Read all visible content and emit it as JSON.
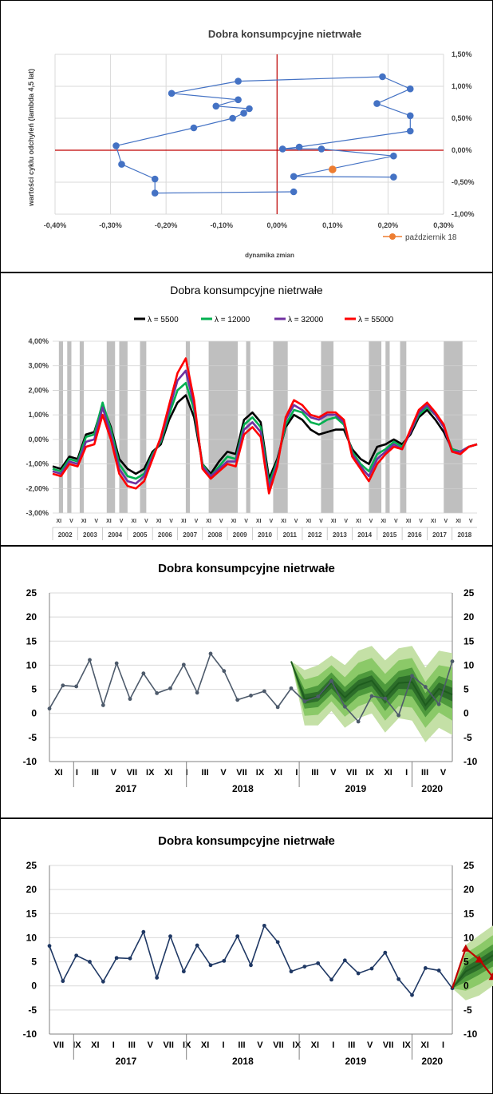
{
  "chart_data": [
    {
      "type": "scatter",
      "title": "Dobra konsumpcyjne nietrwałe",
      "xlabel": "dynamika zmian",
      "ylabel": "wartości cyklu odchyleń (lambda 4,5 lat)",
      "xlim": [
        -0.004,
        0.003
      ],
      "ylim": [
        -0.01,
        0.015
      ],
      "xticks": [
        "-0,40%",
        "-0,30%",
        "-0,20%",
        "-0,10%",
        "0,00%",
        "0,10%",
        "0,20%",
        "0,30%"
      ],
      "yticks": [
        "-1,00%",
        "-0,50%",
        "0,00%",
        "0,50%",
        "1,00%",
        "1,50%"
      ],
      "legend": {
        "label": "październik 18",
        "position": "bottom-right"
      },
      "colors": {
        "series": "#4472c4",
        "highlight": "#ed7d31",
        "axis": "#c00000"
      },
      "points": [
        [
          0.0003,
          -0.0065
        ],
        [
          -0.0022,
          -0.0067
        ],
        [
          -0.0022,
          -0.0045
        ],
        [
          -0.0028,
          -0.0022
        ],
        [
          -0.0029,
          0.0007
        ],
        [
          -0.0015,
          0.0035
        ],
        [
          -0.0008,
          0.005
        ],
        [
          -0.0006,
          0.0058
        ],
        [
          -0.0005,
          0.0065
        ],
        [
          -0.0011,
          0.0069
        ],
        [
          -0.0007,
          0.0079
        ],
        [
          -0.0019,
          0.0089
        ],
        [
          -0.0007,
          0.0108
        ],
        [
          0.0019,
          0.0115
        ],
        [
          0.0024,
          0.0096
        ],
        [
          0.0018,
          0.0073
        ],
        [
          0.0024,
          0.0054
        ],
        [
          0.0024,
          0.003
        ],
        [
          0.0004,
          0.0005
        ],
        [
          0.0001,
          0.0002
        ],
        [
          0.0008,
          0.0002
        ],
        [
          0.0021,
          -0.0009
        ],
        [
          0.0003,
          -0.0041
        ],
        [
          0.0021,
          -0.0042
        ]
      ],
      "highlight": [
        0.001,
        -0.003
      ]
    },
    {
      "type": "line",
      "title": "Dobra konsumpcyjne nietrwałe",
      "ylim": [
        -0.03,
        0.04
      ],
      "yticks": [
        "-3,00%",
        "-2,00%",
        "-1,00%",
        "0,00%",
        "1,00%",
        "2,00%",
        "3,00%",
        "4,00%"
      ],
      "years": [
        "2002",
        "2003",
        "2004",
        "2005",
        "2006",
        "2007",
        "2008",
        "2009",
        "2010",
        "2011",
        "2012",
        "2013",
        "2014",
        "2015",
        "2016",
        "2017",
        "2018"
      ],
      "month_labels": [
        "XI",
        "V",
        "XI",
        "V",
        "XI",
        "V",
        "XI",
        "V",
        "XI",
        "V",
        "XI",
        "V",
        "XI",
        "V",
        "XI",
        "V",
        "XI",
        "V",
        "XI",
        "V",
        "XI",
        "V",
        "XI",
        "V",
        "XI",
        "V",
        "XI",
        "V",
        "XI",
        "V",
        "XI",
        "V",
        "XI",
        "V"
      ],
      "legend_position": "top",
      "x_range_months": [
        0,
        204
      ],
      "shaded_periods": [
        [
          3,
          5
        ],
        [
          7,
          9
        ],
        [
          13,
          15
        ],
        [
          26,
          30
        ],
        [
          32,
          36
        ],
        [
          42,
          45
        ],
        [
          64,
          66
        ],
        [
          75,
          89
        ],
        [
          93,
          95
        ],
        [
          106,
          113
        ],
        [
          129,
          135
        ],
        [
          152,
          158
        ],
        [
          160,
          162
        ],
        [
          167,
          170
        ],
        [
          188,
          197
        ]
      ],
      "x": [
        0,
        4,
        8,
        12,
        16,
        20,
        24,
        28,
        32,
        36,
        40,
        44,
        48,
        52,
        56,
        60,
        64,
        68,
        72,
        76,
        80,
        84,
        88,
        92,
        96,
        100,
        104,
        108,
        112,
        116,
        120,
        124,
        128,
        132,
        136,
        140,
        144,
        148,
        152,
        156,
        160,
        164,
        168,
        172,
        176,
        180,
        184,
        188,
        192,
        196,
        200,
        204
      ],
      "series": [
        {
          "name": "λ = 5500",
          "color": "#000000",
          "values": [
            -0.011,
            -0.012,
            -0.007,
            -0.008,
            0.002,
            0.003,
            0.014,
            0.005,
            -0.008,
            -0.012,
            -0.014,
            -0.012,
            -0.005,
            -0.002,
            0.008,
            0.015,
            0.018,
            0.009,
            -0.01,
            -0.014,
            -0.009,
            -0.005,
            -0.006,
            0.008,
            0.011,
            0.007,
            -0.016,
            -0.008,
            0.005,
            0.01,
            0.008,
            0.004,
            0.002,
            0.003,
            0.004,
            0.004,
            -0.004,
            -0.008,
            -0.01,
            -0.003,
            -0.002,
            0.0,
            -0.002,
            0.002,
            0.009,
            0.012,
            0.008,
            0.003,
            -0.004,
            -0.005,
            -0.003,
            -0.002
          ]
        },
        {
          "name": "λ = 12000",
          "color": "#00b050",
          "values": [
            -0.012,
            -0.013,
            -0.008,
            -0.009,
            0.001,
            0.002,
            0.015,
            0.004,
            -0.01,
            -0.015,
            -0.016,
            -0.014,
            -0.006,
            -0.001,
            0.01,
            0.02,
            0.023,
            0.012,
            -0.01,
            -0.015,
            -0.011,
            -0.007,
            -0.008,
            0.006,
            0.009,
            0.005,
            -0.018,
            -0.009,
            0.006,
            0.012,
            0.011,
            0.007,
            0.006,
            0.008,
            0.009,
            0.006,
            -0.005,
            -0.01,
            -0.013,
            -0.006,
            -0.004,
            -0.001,
            -0.003,
            0.003,
            0.01,
            0.013,
            0.01,
            0.005,
            -0.004,
            -0.005,
            -0.003,
            -0.002
          ]
        },
        {
          "name": "λ = 32000",
          "color": "#7030a0",
          "values": [
            -0.013,
            -0.014,
            -0.009,
            -0.01,
            -0.001,
            0.0,
            0.013,
            0.002,
            -0.012,
            -0.017,
            -0.018,
            -0.015,
            -0.007,
            0.0,
            0.012,
            0.024,
            0.028,
            0.014,
            -0.011,
            -0.015,
            -0.012,
            -0.009,
            -0.009,
            0.004,
            0.007,
            0.003,
            -0.02,
            -0.01,
            0.008,
            0.014,
            0.012,
            0.009,
            0.008,
            0.01,
            0.01,
            0.007,
            -0.006,
            -0.011,
            -0.015,
            -0.008,
            -0.005,
            -0.002,
            -0.004,
            0.003,
            0.011,
            0.014,
            0.01,
            0.005,
            -0.005,
            -0.005,
            -0.003,
            -0.002
          ]
        },
        {
          "name": "λ = 55000",
          "color": "#ff0000",
          "values": [
            -0.014,
            -0.015,
            -0.01,
            -0.011,
            -0.003,
            -0.002,
            0.01,
            0.0,
            -0.014,
            -0.019,
            -0.02,
            -0.017,
            -0.008,
            0.001,
            0.014,
            0.027,
            0.033,
            0.016,
            -0.012,
            -0.016,
            -0.013,
            -0.01,
            -0.011,
            0.002,
            0.005,
            0.001,
            -0.022,
            -0.011,
            0.009,
            0.016,
            0.014,
            0.01,
            0.009,
            0.011,
            0.011,
            0.008,
            -0.007,
            -0.012,
            -0.017,
            -0.01,
            -0.006,
            -0.003,
            -0.004,
            0.004,
            0.012,
            0.015,
            0.011,
            0.006,
            -0.005,
            -0.006,
            -0.003,
            -0.002
          ]
        }
      ]
    },
    {
      "type": "line",
      "title": "Dobra konsumpcyjne nietrwałe",
      "ylim": [
        -10,
        25
      ],
      "yticks": [
        "-10",
        "-5",
        "0",
        "5",
        "10",
        "15",
        "20",
        "25"
      ],
      "month_labels": [
        "XI",
        "I",
        "III",
        "V",
        "VII",
        "IX",
        "XI",
        "I",
        "III",
        "V",
        "VII",
        "IX",
        "XI",
        "I",
        "III",
        "V",
        "VII",
        "IX",
        "XI",
        "I",
        "III",
        "V"
      ],
      "years": [
        "2017",
        "2018",
        "2019",
        "2020"
      ],
      "x_range_months": [
        0,
        30
      ],
      "series": [
        {
          "name": "history",
          "color": "#4d5a6b",
          "values": [
            1.0,
            5.8,
            5.6,
            11.1,
            1.7,
            10.4,
            3.0,
            8.3,
            4.2,
            5.2,
            10.1,
            4.3,
            12.4,
            8.8,
            2.8,
            3.7,
            4.6,
            1.3,
            5.2,
            2.5,
            3.5,
            6.7,
            1.4,
            -1.7,
            3.6,
            3.1,
            -0.4,
            7.8,
            5.5,
            1.9,
            10.8
          ]
        }
      ],
      "forecast": {
        "start": 18,
        "center": [
          10.8,
          3.0,
          3.5,
          6.3,
          3.3,
          5.8,
          6.8,
          3.2,
          6.3,
          6.5,
          1.7,
          5.1,
          3.9
        ],
        "bands": [
          {
            "lower": [
              10.8,
              -2.5,
              -2.5,
              0.5,
              -3.0,
              -1.0,
              0.0,
              -4.0,
              -1.0,
              -1.5,
              -6.0,
              -3.0,
              -4.5
            ],
            "upper": [
              10.8,
              9.0,
              10.0,
              12.0,
              10.0,
              13.0,
              14.0,
              11.0,
              13.5,
              14.0,
              9.5,
              13.0,
              12.5
            ],
            "color": "#c4e0a6"
          },
          {
            "lower": [
              10.8,
              -0.5,
              -0.3,
              2.5,
              -0.7,
              1.5,
              2.5,
              -1.5,
              1.5,
              1.2,
              -3.0,
              0.2,
              -1.5
            ],
            "upper": [
              10.8,
              7.0,
              7.8,
              10.0,
              7.5,
              10.5,
              11.5,
              8.2,
              11.0,
              11.5,
              6.5,
              10.0,
              9.5
            ],
            "color": "#8bc968"
          },
          {
            "lower": [
              10.8,
              1.0,
              1.3,
              4.0,
              1.0,
              3.5,
              4.5,
              0.5,
              3.8,
              3.5,
              -0.8,
              2.5,
              1.0
            ],
            "upper": [
              10.8,
              5.0,
              5.8,
              8.5,
              5.5,
              8.0,
              9.0,
              6.0,
              8.8,
              9.5,
              4.2,
              7.8,
              6.8
            ],
            "color": "#4e9a3c"
          },
          {
            "lower": [
              10.8,
              2.0,
              2.5,
              5.2,
              2.2,
              4.7,
              5.7,
              2.0,
              5.1,
              5.0,
              0.5,
              3.8,
              2.5
            ],
            "upper": [
              10.8,
              4.0,
              4.5,
              7.4,
              4.4,
              6.9,
              7.9,
              4.4,
              7.5,
              8.0,
              2.9,
              6.4,
              5.3
            ],
            "color": "#2d6e2a"
          }
        ]
      }
    },
    {
      "type": "line",
      "title": "Dobra konsumpcyjne nietrwałe",
      "ylim": [
        -10,
        25
      ],
      "yticks": [
        "-10",
        "-5",
        "0",
        "5",
        "10",
        "15",
        "20",
        "25"
      ],
      "month_labels": [
        "VII",
        "IX",
        "XI",
        "I",
        "III",
        "V",
        "VII",
        "IX",
        "XI",
        "I",
        "III",
        "V",
        "VII",
        "IX",
        "XI",
        "I",
        "III",
        "V",
        "VII",
        "IX",
        "XI",
        "I"
      ],
      "years": [
        "2017",
        "2018",
        "2019",
        "2020"
      ],
      "x_range_months": [
        0,
        30
      ],
      "series": [
        {
          "name": "history",
          "color": "#1f3864",
          "values": [
            8.3,
            1.0,
            6.3,
            5.0,
            0.9,
            5.8,
            5.7,
            11.2,
            1.7,
            10.3,
            3.0,
            8.4,
            4.3,
            5.2,
            10.3,
            4.3,
            12.5,
            9.1,
            3.0,
            4.0,
            4.7,
            1.3,
            5.3,
            2.6,
            3.6,
            6.9,
            1.4,
            -1.9,
            3.7,
            3.2,
            -0.5
          ]
        },
        {
          "name": "realized",
          "color": "#c00000",
          "x_start": 30,
          "values": [
            -0.5,
            7.8,
            5.5,
            1.9,
            10.8
          ]
        }
      ],
      "forecast": {
        "start": 30,
        "center": [
          -0.5,
          3.0,
          4.5,
          6.3,
          3.0,
          3.8,
          5.8,
          3.2,
          5.8,
          6.3,
          3.2,
          6.0,
          4.5
        ],
        "bands": [
          {
            "lower": [
              -0.5,
              -3.0,
              -2.0,
              0.0,
              -3.0,
              -2.5,
              -0.5,
              -3.5,
              -1.0,
              -1.0,
              -4.5,
              -1.5,
              -4.0
            ],
            "upper": [
              -0.5,
              8.5,
              10.5,
              12.5,
              9.5,
              10.5,
              12.5,
              10.0,
              12.5,
              13.5,
              10.5,
              13.5,
              12.5
            ],
            "color": "#c4e0a6"
          },
          {
            "lower": [
              -0.5,
              -1.0,
              0.3,
              2.0,
              -0.8,
              -0.2,
              1.8,
              -1.0,
              1.5,
              1.5,
              -1.8,
              1.0,
              -1.0
            ],
            "upper": [
              -0.5,
              6.8,
              8.5,
              10.5,
              7.5,
              8.5,
              10.0,
              7.8,
              10.2,
              11.0,
              8.0,
              11.0,
              9.8
            ],
            "color": "#8bc968"
          },
          {
            "lower": [
              -0.5,
              0.8,
              2.3,
              4.0,
              1.0,
              1.8,
              3.8,
              1.0,
              3.5,
              3.8,
              0.5,
              3.5,
              1.8
            ],
            "upper": [
              -0.5,
              5.0,
              6.7,
              8.6,
              5.2,
              6.0,
              7.8,
              5.5,
              8.1,
              8.8,
              5.8,
              8.5,
              7.2
            ],
            "color": "#4e9a3c"
          },
          {
            "lower": [
              -0.5,
              2.0,
              3.4,
              5.2,
              2.0,
              2.8,
              4.8,
              2.2,
              4.7,
              5.1,
              2.0,
              4.8,
              3.2
            ],
            "upper": [
              -0.5,
              4.0,
              5.6,
              7.4,
              4.0,
              4.8,
              6.8,
              4.2,
              6.9,
              7.5,
              4.4,
              7.2,
              5.8
            ],
            "color": "#2d6e2a"
          }
        ]
      }
    }
  ]
}
